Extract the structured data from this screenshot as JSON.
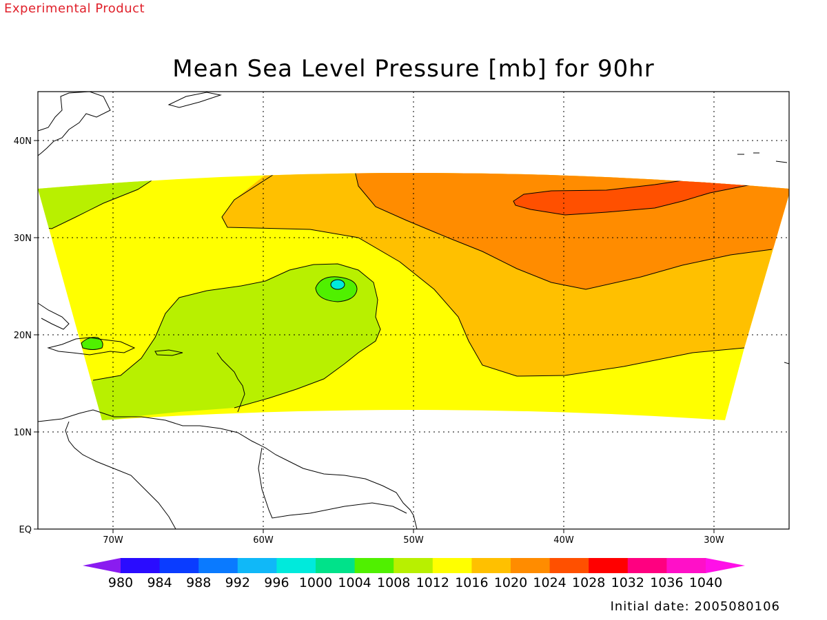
{
  "header": {
    "tag": "Experimental Product"
  },
  "title": "Mean Sea Level Pressure [mb] for 90hr",
  "footer": {
    "initial_date": "Initial date: 2005080106"
  },
  "axes": {
    "lat_ticks": [
      {
        "label": "40N"
      },
      {
        "label": "30N"
      },
      {
        "label": "20N"
      },
      {
        "label": "10N"
      },
      {
        "label": "EQ"
      }
    ],
    "lon_ticks": [
      {
        "label": "70W"
      },
      {
        "label": "60W"
      },
      {
        "label": "50W"
      },
      {
        "label": "40W"
      },
      {
        "label": "30W"
      }
    ]
  },
  "colorbar": {
    "levels": [
      "980",
      "984",
      "988",
      "992",
      "996",
      "1000",
      "1004",
      "1008",
      "1012",
      "1016",
      "1020",
      "1024",
      "1028",
      "1032",
      "1036",
      "1040"
    ],
    "colors": [
      "#8a1cf0",
      "#2a0cff",
      "#0a3cff",
      "#0a7aff",
      "#10b8f8",
      "#00eadc",
      "#00e28a",
      "#50f000",
      "#b8f000",
      "#ffff00",
      "#ffc000",
      "#ff8c00",
      "#ff5000",
      "#ff0000",
      "#ff0080",
      "#ff10c8",
      "#ff10e8"
    ]
  },
  "field_colors": {
    "p1004": "#50f000",
    "p1008": "#b8f000",
    "p1012": "#ffff00",
    "p1016": "#ffc000",
    "p1020": "#ff8c00",
    "p1024": "#ff5000",
    "p1000": "#00e28a",
    "p996": "#00eadc"
  }
}
